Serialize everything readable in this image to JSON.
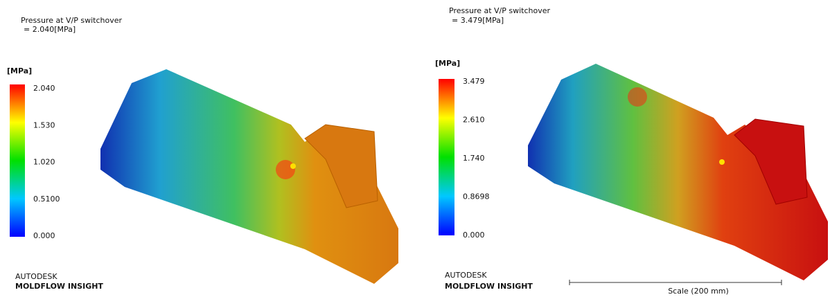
{
  "panels": [
    {
      "title": "Pressure at V/P switchover",
      "result": "= 2.040[MPa]",
      "legend_unit": "[MPa]",
      "legend_ticks": [
        "2.040",
        "1.530",
        "1.020",
        "0.5100",
        "0.000"
      ],
      "brand": "AUTODESK",
      "product": "MOLDFLOW INSIGHT"
    },
    {
      "title": "Pressure at V/P switchover",
      "result": "= 3.479[MPa]",
      "legend_unit": "[MPa]",
      "legend_ticks": [
        "3.479",
        "2.610",
        "1.740",
        "0.8698",
        "0.000"
      ],
      "brand": "AUTODESK",
      "product": "MOLDFLOW INSIGHT",
      "scale": "Scale (200 mm)"
    }
  ]
}
